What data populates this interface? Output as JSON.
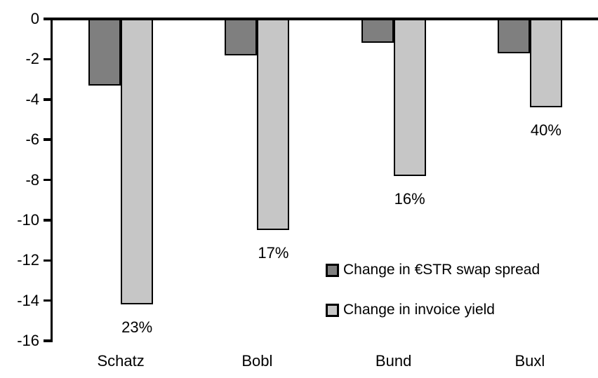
{
  "chart_data": {
    "type": "bar",
    "title": "",
    "xlabel": "",
    "ylabel": "",
    "categories": [
      "Schatz",
      "Bobl",
      "Bund",
      "Buxl"
    ],
    "series": [
      {
        "name": "Change in €STR swap spread",
        "color": "#7f7f7f",
        "values": [
          -3.3,
          -1.8,
          -1.2,
          -1.7
        ]
      },
      {
        "name": "Change in invoice yield",
        "color": "#c6c6c6",
        "values": [
          -14.2,
          -10.5,
          -7.8,
          -4.4
        ]
      }
    ],
    "bar_labels": {
      "series": "Change in invoice yield",
      "values": [
        "23%",
        "17%",
        "16%",
        "40%"
      ]
    },
    "ylim": [
      -16,
      0
    ],
    "ytick_step": 2,
    "ytick_labels": [
      "0",
      "-2",
      "-4",
      "-6",
      "-8",
      "-10",
      "-12",
      "-14",
      "-16"
    ],
    "grid": false,
    "legend_position": "inside-right-middle",
    "bar_border_color": "#000000",
    "background_color": "#ffffff"
  }
}
